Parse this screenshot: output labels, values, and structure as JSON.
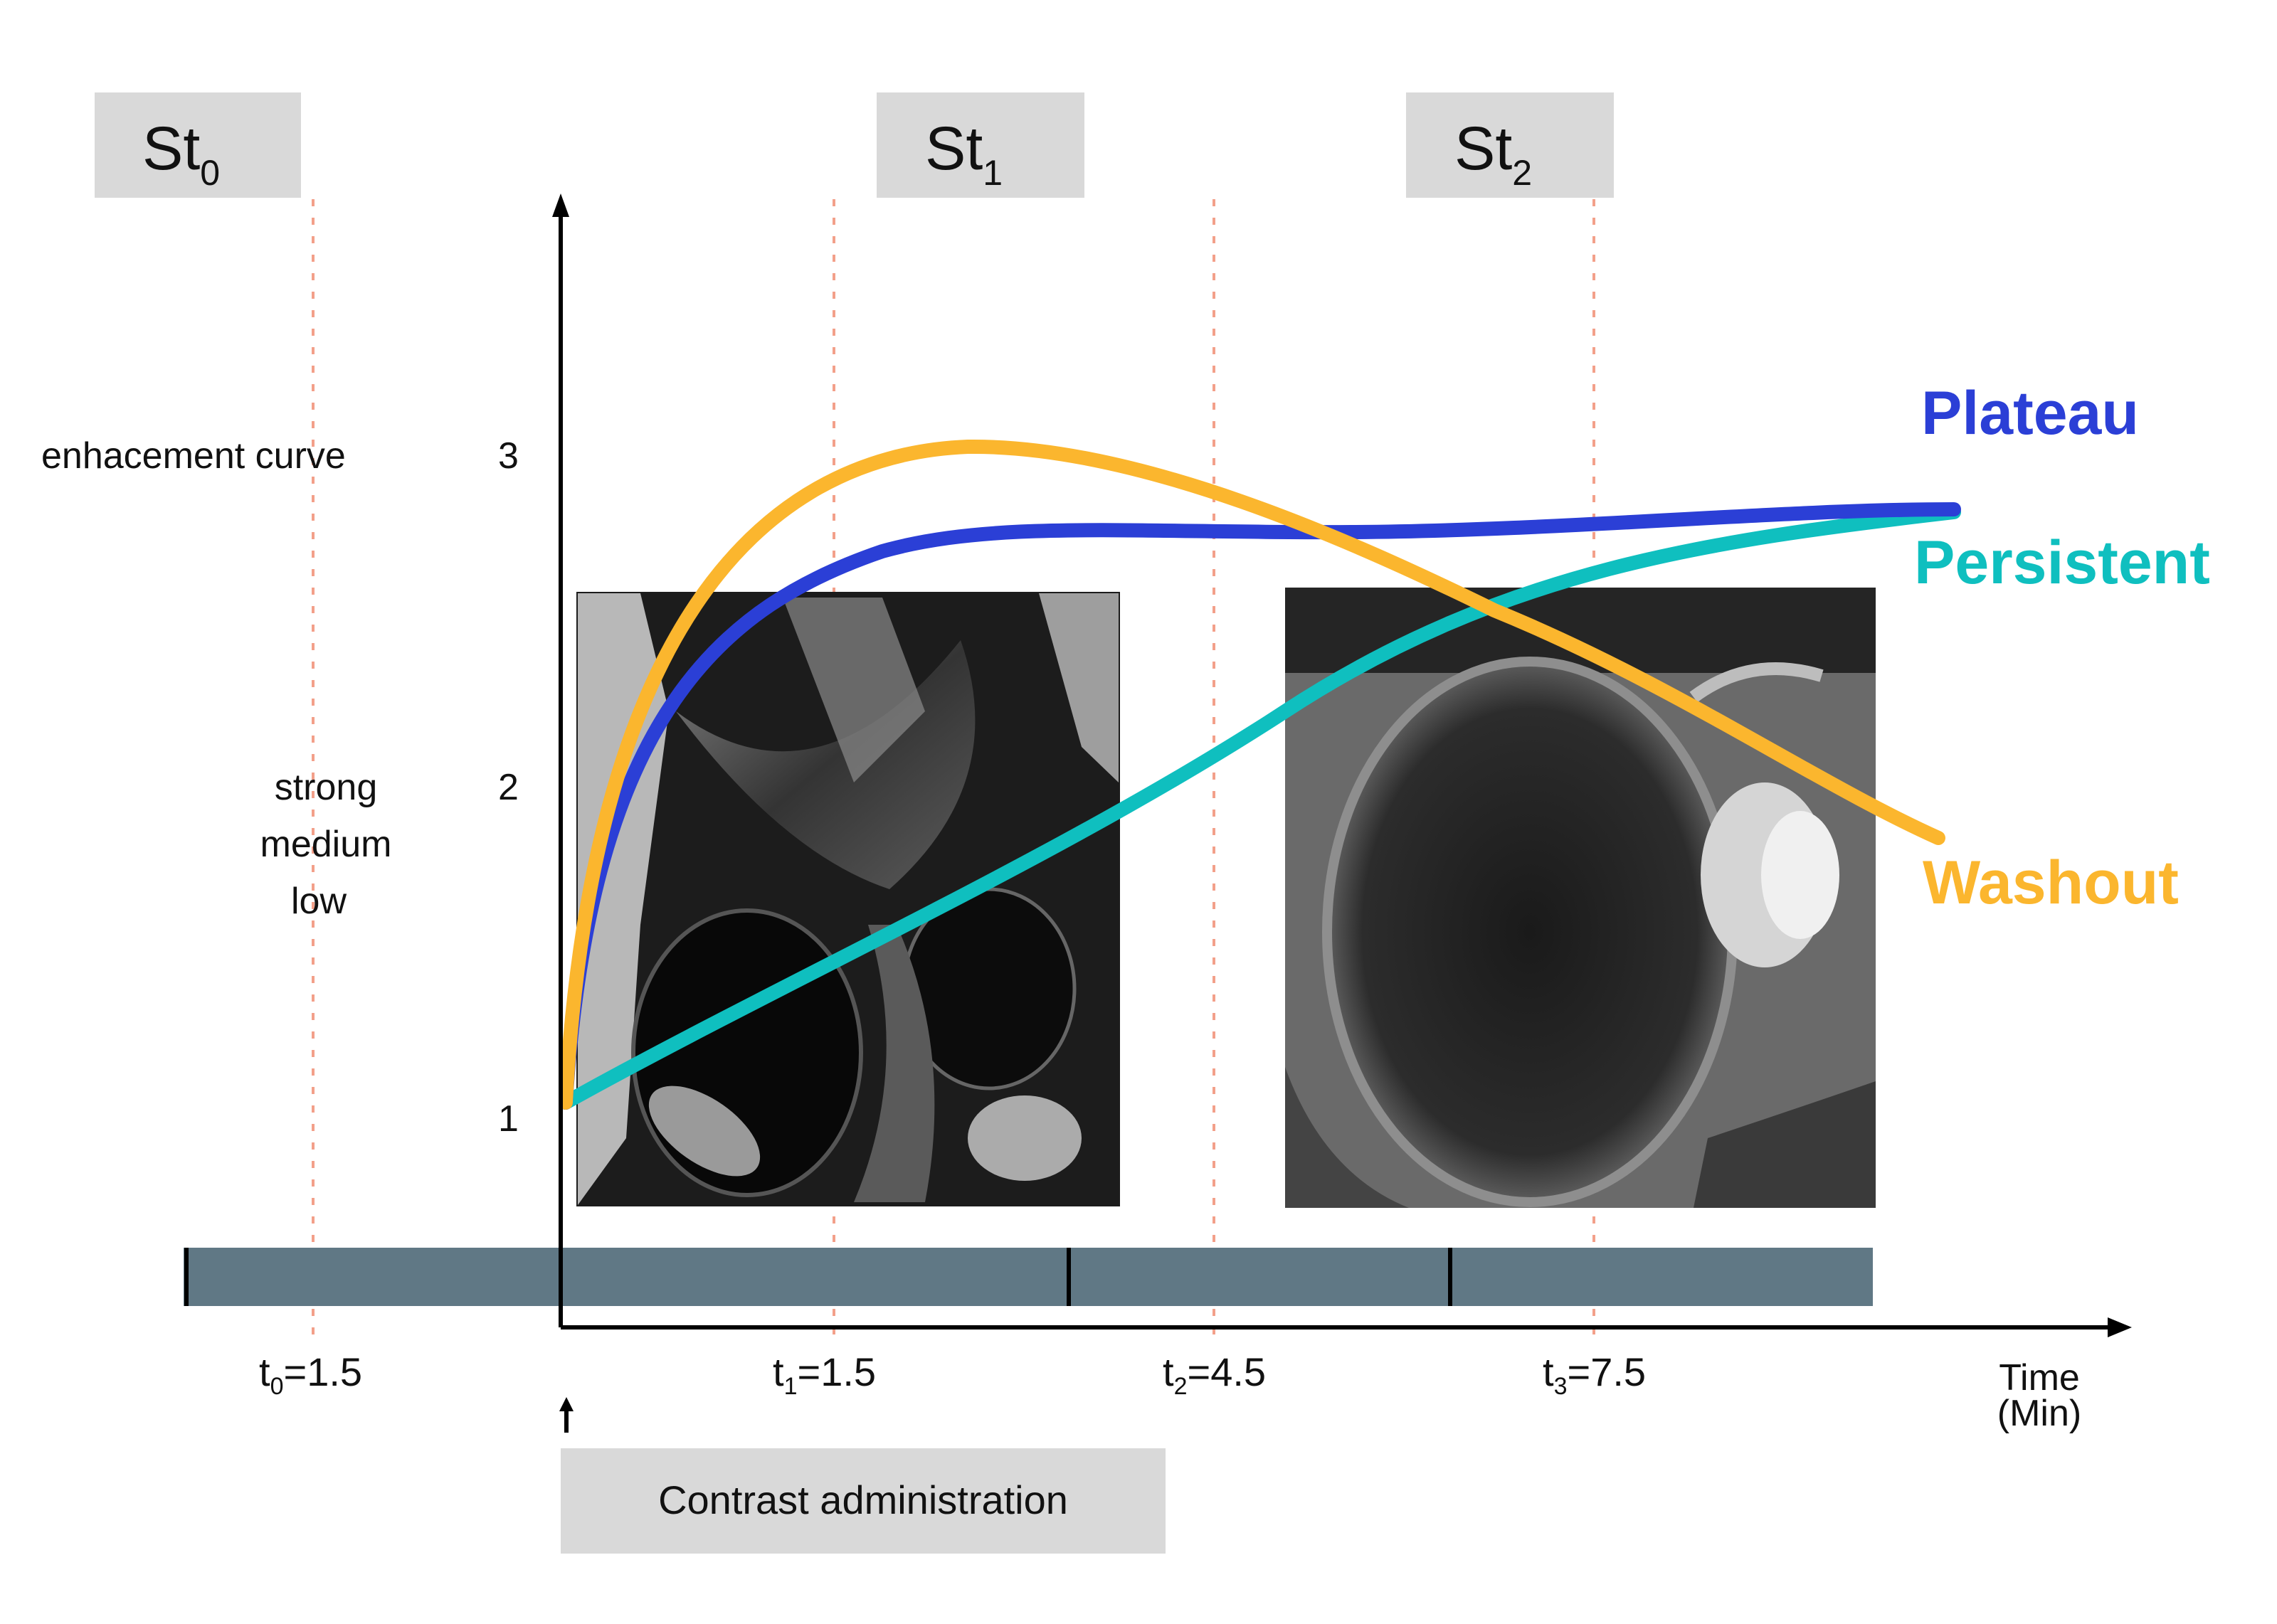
{
  "stage_labels": [
    {
      "base": "St",
      "sub": "0"
    },
    {
      "base": "St",
      "sub": "1"
    },
    {
      "base": "St",
      "sub": "2"
    }
  ],
  "y_axis": {
    "label": "enhacement curve",
    "ticks": [
      "1",
      "2",
      "3"
    ],
    "levels": [
      "strong",
      "medium",
      "low"
    ]
  },
  "x_axis": {
    "unit_line1": "Time",
    "unit_line2": "(Min)",
    "time_labels": [
      {
        "base": "t",
        "sub": "0",
        "value": "=1.5"
      },
      {
        "base": "t",
        "sub": "1",
        "value": "=1.5"
      },
      {
        "base": "t",
        "sub": "2",
        "value": "=4.5"
      },
      {
        "base": "t",
        "sub": "3",
        "value": "=7.5"
      }
    ]
  },
  "contrast_label": "Contrast administration",
  "curves": [
    {
      "name": "Plateau",
      "color": "#2b3fd6"
    },
    {
      "name": "Persistent",
      "color": "#0fbfbf"
    },
    {
      "name": "Washout",
      "color": "#fbb62e"
    }
  ],
  "colors": {
    "timeline_bar": "#607885",
    "label_box": "#d9d9d9",
    "guide_line": "#f3a08a"
  },
  "images": [
    "mri-image-sagittal-pelvis",
    "mri-image-enhanced-mass"
  ]
}
